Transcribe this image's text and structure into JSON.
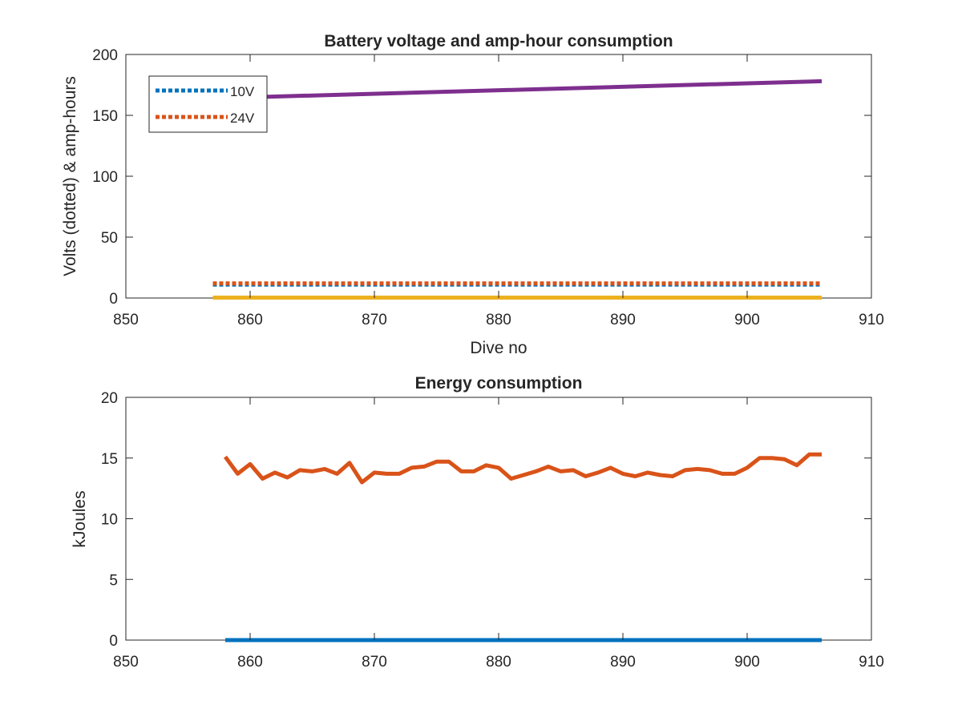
{
  "chart_data": [
    {
      "type": "line",
      "title": "Battery voltage and amp-hour consumption",
      "xlabel": "Dive no",
      "ylabel": "Volts (dotted) & amp-hours",
      "xlim": [
        850,
        910
      ],
      "ylim": [
        0,
        200
      ],
      "xticks": [
        850,
        860,
        870,
        880,
        890,
        900,
        910
      ],
      "yticks": [
        0,
        50,
        100,
        150,
        200
      ],
      "grid": false,
      "legend_position": "top-left",
      "series": [
        {
          "name": "10V",
          "style": "dotted",
          "color": "#0072bd",
          "x": [
            857,
            906
          ],
          "y": [
            11,
            11
          ]
        },
        {
          "name": "24V",
          "style": "dotted",
          "color": "#d95319",
          "x": [
            857,
            906
          ],
          "y": [
            12,
            12
          ]
        },
        {
          "style": "solid",
          "color": "#edb120",
          "x": [
            857,
            906
          ],
          "y": [
            0.3,
            0.3
          ]
        },
        {
          "style": "solid",
          "color": "#7e2f8e",
          "x": [
            857,
            906
          ],
          "y": [
            164,
            178
          ]
        }
      ]
    },
    {
      "type": "line",
      "title": "Energy consumption",
      "xlabel": "",
      "ylabel": "kJoules",
      "xlim": [
        850,
        910
      ],
      "ylim": [
        0,
        20
      ],
      "xticks": [
        850,
        860,
        870,
        880,
        890,
        900,
        910
      ],
      "yticks": [
        0,
        5,
        10,
        15,
        20
      ],
      "grid": false,
      "series": [
        {
          "style": "solid",
          "color": "#0072bd",
          "x": [
            858,
            906
          ],
          "y": [
            0,
            0
          ]
        },
        {
          "style": "solid",
          "color": "#d95319",
          "x": [
            858,
            859,
            860,
            861,
            862,
            863,
            864,
            865,
            866,
            867,
            868,
            869,
            870,
            871,
            872,
            873,
            874,
            875,
            876,
            877,
            878,
            879,
            880,
            881,
            882,
            883,
            884,
            885,
            886,
            887,
            888,
            889,
            890,
            891,
            892,
            893,
            894,
            895,
            896,
            897,
            898,
            899,
            900,
            901,
            902,
            903,
            904,
            905,
            906
          ],
          "y": [
            15.1,
            13.7,
            14.5,
            13.3,
            13.8,
            13.4,
            14.0,
            13.9,
            14.1,
            13.7,
            14.6,
            13.0,
            13.8,
            13.7,
            13.7,
            14.2,
            14.3,
            14.7,
            14.7,
            13.9,
            13.9,
            14.4,
            14.2,
            13.3,
            13.6,
            13.9,
            14.3,
            13.9,
            14.0,
            13.5,
            13.8,
            14.2,
            13.7,
            13.5,
            13.8,
            13.6,
            13.5,
            14.0,
            14.1,
            14.0,
            13.7,
            13.7,
            14.2,
            15.0,
            15.0,
            14.9,
            14.4,
            15.3,
            15.3
          ]
        }
      ]
    }
  ]
}
